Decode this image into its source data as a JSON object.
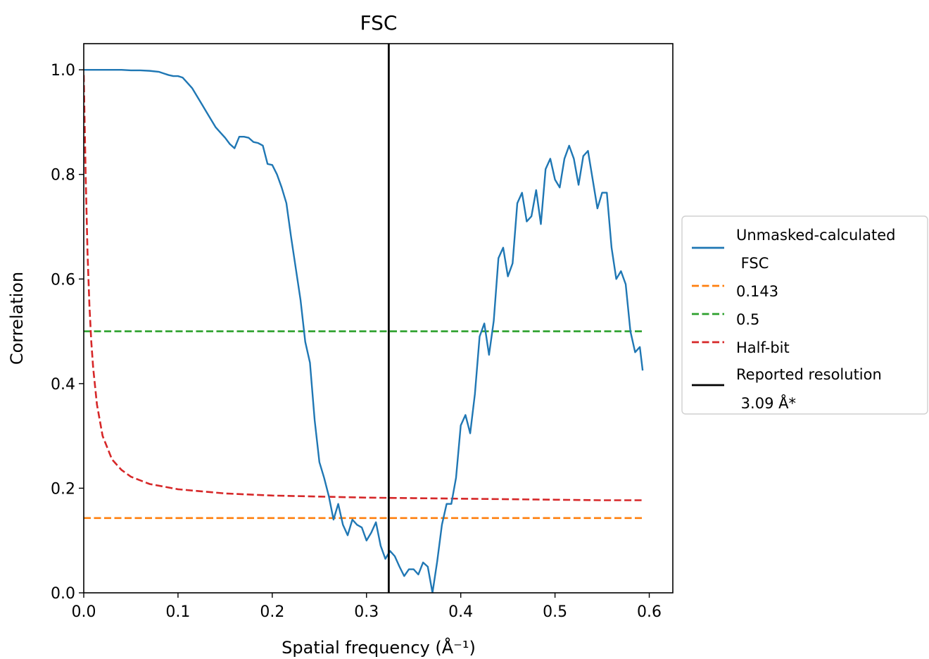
{
  "chart_data": {
    "type": "line",
    "title": "FSC",
    "xlabel": "Spatial frequency (Å⁻¹)",
    "ylabel": "Correlation",
    "xlim": [
      0.0,
      0.625
    ],
    "ylim": [
      0.0,
      1.05
    ],
    "xticks": [
      "0.0",
      "0.1",
      "0.2",
      "0.3",
      "0.4",
      "0.5",
      "0.6"
    ],
    "xtick_values": [
      0.0,
      0.1,
      0.2,
      0.3,
      0.4,
      0.5,
      0.6
    ],
    "yticks": [
      "0.0",
      "0.2",
      "0.4",
      "0.6",
      "0.8",
      "1.0"
    ],
    "ytick_values": [
      0.0,
      0.2,
      0.4,
      0.6,
      0.8,
      1.0
    ],
    "grid": false,
    "legend_position": "outside-right",
    "series": [
      {
        "name": "Unmasked-calculated\n FSC",
        "style": "solid",
        "color": "#1f77b4",
        "x": [
          0.0,
          0.01,
          0.02,
          0.03,
          0.04,
          0.05,
          0.06,
          0.07,
          0.08,
          0.085,
          0.09,
          0.095,
          0.1,
          0.105,
          0.11,
          0.115,
          0.12,
          0.125,
          0.13,
          0.135,
          0.14,
          0.145,
          0.15,
          0.155,
          0.16,
          0.165,
          0.17,
          0.175,
          0.18,
          0.185,
          0.19,
          0.195,
          0.2,
          0.205,
          0.21,
          0.215,
          0.22,
          0.225,
          0.23,
          0.235,
          0.24,
          0.245,
          0.25,
          0.255,
          0.26,
          0.265,
          0.27,
          0.275,
          0.28,
          0.285,
          0.29,
          0.295,
          0.3,
          0.305,
          0.31,
          0.315,
          0.32,
          0.325,
          0.33,
          0.335,
          0.34,
          0.345,
          0.35,
          0.355,
          0.36,
          0.365,
          0.37,
          0.375,
          0.38,
          0.385,
          0.39,
          0.395,
          0.4,
          0.405,
          0.41,
          0.415,
          0.42,
          0.425,
          0.43,
          0.435,
          0.44,
          0.445,
          0.45,
          0.455,
          0.46,
          0.465,
          0.47,
          0.475,
          0.48,
          0.485,
          0.49,
          0.495,
          0.5,
          0.505,
          0.51,
          0.515,
          0.52,
          0.525,
          0.53,
          0.535,
          0.54,
          0.545,
          0.55,
          0.555,
          0.56,
          0.565,
          0.57,
          0.575,
          0.58,
          0.585,
          0.59,
          0.593
        ],
        "y": [
          1.0,
          1.0,
          1.0,
          1.0,
          1.0,
          0.999,
          0.999,
          0.998,
          0.996,
          0.993,
          0.99,
          0.988,
          0.988,
          0.985,
          0.975,
          0.965,
          0.95,
          0.935,
          0.92,
          0.905,
          0.89,
          0.88,
          0.87,
          0.858,
          0.85,
          0.872,
          0.872,
          0.87,
          0.862,
          0.86,
          0.855,
          0.82,
          0.818,
          0.8,
          0.775,
          0.745,
          0.68,
          0.62,
          0.56,
          0.48,
          0.44,
          0.33,
          0.25,
          0.22,
          0.185,
          0.14,
          0.17,
          0.13,
          0.11,
          0.14,
          0.13,
          0.125,
          0.1,
          0.115,
          0.135,
          0.09,
          0.065,
          0.08,
          0.07,
          0.05,
          0.032,
          0.045,
          0.045,
          0.035,
          0.058,
          0.05,
          0.0,
          0.06,
          0.13,
          0.17,
          0.17,
          0.22,
          0.32,
          0.34,
          0.305,
          0.38,
          0.49,
          0.515,
          0.455,
          0.52,
          0.64,
          0.66,
          0.605,
          0.63,
          0.745,
          0.765,
          0.71,
          0.72,
          0.77,
          0.705,
          0.81,
          0.83,
          0.79,
          0.775,
          0.83,
          0.855,
          0.83,
          0.78,
          0.835,
          0.845,
          0.79,
          0.735,
          0.765,
          0.765,
          0.66,
          0.6,
          0.615,
          0.59,
          0.5,
          0.46,
          0.47,
          0.425
        ]
      },
      {
        "name": "0.143",
        "style": "dashed",
        "color": "#ff7f0e",
        "x": [
          0.0,
          0.593
        ],
        "y": [
          0.143,
          0.143
        ]
      },
      {
        "name": "0.5",
        "style": "dashed",
        "color": "#2ca02c",
        "x": [
          0.0,
          0.593
        ],
        "y": [
          0.5,
          0.5
        ]
      },
      {
        "name": "Half-bit",
        "style": "dashed",
        "color": "#d62728",
        "x": [
          0.0,
          0.002,
          0.004,
          0.006,
          0.008,
          0.01,
          0.014,
          0.02,
          0.03,
          0.04,
          0.05,
          0.07,
          0.1,
          0.15,
          0.2,
          0.25,
          0.3,
          0.35,
          0.4,
          0.45,
          0.5,
          0.55,
          0.593
        ],
        "y": [
          0.99,
          0.8,
          0.65,
          0.55,
          0.48,
          0.43,
          0.36,
          0.3,
          0.255,
          0.235,
          0.222,
          0.208,
          0.198,
          0.19,
          0.186,
          0.184,
          0.182,
          0.181,
          0.18,
          0.179,
          0.178,
          0.177,
          0.177
        ]
      },
      {
        "name": "Reported resolution\n 3.09 Å*",
        "style": "solid",
        "color": "#000000",
        "orientation": "vertical",
        "x": [
          0.3236,
          0.3236
        ],
        "y": [
          0.0,
          1.05
        ]
      }
    ]
  }
}
